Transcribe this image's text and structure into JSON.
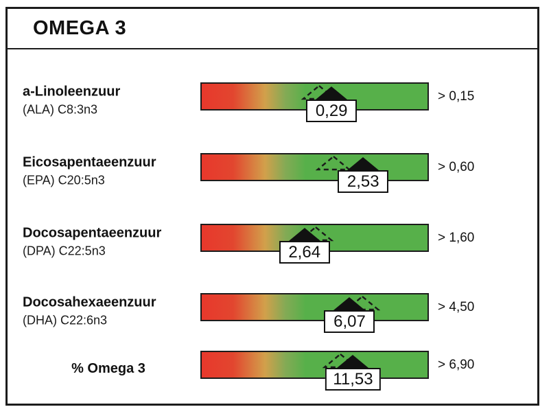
{
  "title": "OMEGA 3",
  "icons": {
    "marker": "filled-triangle-up-icon",
    "ghost_marker": "dashed-triangle-up-icon"
  },
  "colors": {
    "scale_red": "#e8382c",
    "scale_yellow": "#d2a04b",
    "scale_green": "#57b04a",
    "border": "#1c1c1c",
    "marker": "#111111",
    "value_box_bg": "#ffffff"
  },
  "rows": [
    {
      "name": "a-Linoleenzuur",
      "subtitle": "(ALA) C8:3n3",
      "value": "0,29",
      "reference": "> 0,15",
      "marker_percent": 57.5,
      "ghost_percent": 52
    },
    {
      "name": "Eicosapentaeenzuur",
      "subtitle": "(EPA) C20:5n3",
      "value": "2,53",
      "reference": "> 0,60",
      "marker_percent": 71.5,
      "ghost_percent": 58.5
    },
    {
      "name": "Docosapentaeenzuur",
      "subtitle": "(DPA) C22:5n3",
      "value": "2,64",
      "reference": "> 1,60",
      "marker_percent": 45.5,
      "ghost_percent": 50.5
    },
    {
      "name": "Docosahexaeenzuur",
      "subtitle": "(DHA) C22:6n3",
      "value": "6,07",
      "reference": "> 4,50",
      "marker_percent": 65.5,
      "ghost_percent": 71
    },
    {
      "name": "% Omega 3",
      "subtitle": "",
      "value": "11,53",
      "reference": "> 6,90",
      "marker_percent": 67,
      "ghost_percent": 61.5
    }
  ],
  "chart_data": {
    "type": "bar",
    "subtype": "gradient-gauge-rows",
    "title": "OMEGA 3",
    "categories": [
      "a-Linoleenzuur (ALA) C8:3n3",
      "Eicosapentaeenzuur (EPA) C20:5n3",
      "Docosapentaeenzuur (DPA) C22:5n3",
      "Docosahexaeenzuur (DHA) C22:6n3",
      "% Omega 3"
    ],
    "values": [
      0.29,
      2.53,
      2.64,
      6.07,
      11.53
    ],
    "value_labels": [
      "0,29",
      "2,53",
      "2,64",
      "6,07",
      "11,53"
    ],
    "reference_labels": [
      "> 0,15",
      "> 0,60",
      "> 1,60",
      "> 4,50",
      "> 6,90"
    ],
    "reference_minimums": [
      0.15,
      0.6,
      1.6,
      4.5,
      6.9
    ],
    "marker_position_percent": [
      57.5,
      71.5,
      45.5,
      65.5,
      67
    ],
    "secondary_marker_position_percent": [
      52,
      58.5,
      50.5,
      71,
      61.5
    ],
    "scale": "qualitative red-yellow-green gradient, no axis ticks",
    "legend_position": "none",
    "grid": false
  }
}
